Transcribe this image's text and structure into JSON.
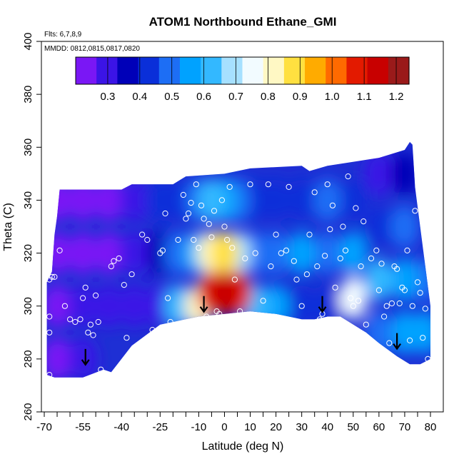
{
  "chart_data": {
    "type": "heatmap",
    "title": "ATOM1 Northbound Ethane_GMI",
    "annotations": {
      "flights": "Flts: 6,7,8,9",
      "dates": "MMDD: 0812,0815,0817,0820"
    },
    "xlabel": "Latitude (deg N)",
    "ylabel": "Theta (C)",
    "xlim": [
      -70,
      80
    ],
    "ylim": [
      260,
      400
    ],
    "x_ticks": [
      -70,
      -55,
      -40,
      -25,
      -10,
      0,
      10,
      20,
      30,
      40,
      50,
      60,
      70,
      80
    ],
    "x_tick_labels": [
      "-70",
      "-55",
      "-40",
      "-25",
      "-10",
      "0",
      "10",
      "20",
      "30",
      "40",
      "50",
      "60",
      "70",
      "80"
    ],
    "x_minor_ticks": [
      -65,
      -60,
      -50,
      -45,
      -35,
      -30,
      -20,
      -15,
      -5,
      5,
      15,
      25,
      35,
      45,
      55,
      65,
      75
    ],
    "y_ticks": [
      260,
      280,
      300,
      320,
      340,
      360,
      380,
      400
    ],
    "y_tick_labels": [
      "260",
      "280",
      "300",
      "320",
      "340",
      "360",
      "380",
      "400"
    ],
    "colorbar": {
      "range": [
        0.2,
        1.24
      ],
      "ticks": [
        0.3,
        0.4,
        0.5,
        0.6,
        0.7,
        0.8,
        0.9,
        1.0,
        1.1,
        1.2
      ],
      "tick_labels": [
        "0.3",
        "0.4",
        "0.5",
        "0.6",
        "0.7",
        "0.8",
        "0.9",
        "1.0",
        "1.1",
        "1.2"
      ],
      "colors": [
        "#7a17f5",
        "#3b14e6",
        "#0000b8",
        "#0a2fd9",
        "#1d6ef5",
        "#00a2ff",
        "#33b8ff",
        "#a6e0ff",
        "#f2fbff",
        "#fff8c4",
        "#ffe040",
        "#ffab00",
        "#ff6a00",
        "#e31a00",
        "#c80000",
        "#9a1a1a"
      ]
    },
    "grid": false,
    "legend": "colorbar-top",
    "top_boundary": [
      [
        -69,
        309
      ],
      [
        -67,
        313
      ],
      [
        -66,
        327
      ],
      [
        -65,
        334
      ],
      [
        -64,
        344
      ],
      [
        -40,
        344
      ],
      [
        -36,
        346
      ],
      [
        -20,
        346
      ],
      [
        -15,
        349
      ],
      [
        0,
        350
      ],
      [
        10,
        352
      ],
      [
        30,
        353
      ],
      [
        33,
        351
      ],
      [
        40,
        353
      ],
      [
        60,
        356
      ],
      [
        70,
        359
      ],
      [
        72,
        362
      ],
      [
        73,
        361
      ],
      [
        74,
        345
      ],
      [
        80,
        300
      ]
    ],
    "bottom_boundary": [
      [
        -69,
        274
      ],
      [
        -66,
        273
      ],
      [
        -60,
        273
      ],
      [
        -55,
        273
      ],
      [
        -47,
        276
      ],
      [
        -44,
        275
      ],
      [
        -36,
        285
      ],
      [
        -25,
        293
      ],
      [
        -10,
        296
      ],
      [
        10,
        298
      ],
      [
        20,
        297
      ],
      [
        30,
        295
      ],
      [
        35,
        295
      ],
      [
        40,
        296
      ],
      [
        45,
        296
      ],
      [
        55,
        290
      ],
      [
        60,
        286
      ],
      [
        67,
        281
      ],
      [
        72,
        278
      ],
      [
        76,
        278
      ],
      [
        80,
        280
      ]
    ],
    "values": [
      {
        "lat": -65,
        "theta": 280,
        "value": 0.25
      },
      {
        "lat": -65,
        "theta": 300,
        "value": 0.26
      },
      {
        "lat": -65,
        "theta": 320,
        "value": 0.24
      },
      {
        "lat": -65,
        "theta": 340,
        "value": 0.22
      },
      {
        "lat": -55,
        "theta": 280,
        "value": 0.27
      },
      {
        "lat": -55,
        "theta": 300,
        "value": 0.27
      },
      {
        "lat": -55,
        "theta": 320,
        "value": 0.25
      },
      {
        "lat": -55,
        "theta": 340,
        "value": 0.23
      },
      {
        "lat": -45,
        "theta": 300,
        "value": 0.28
      },
      {
        "lat": -45,
        "theta": 320,
        "value": 0.26
      },
      {
        "lat": -45,
        "theta": 340,
        "value": 0.24
      },
      {
        "lat": -35,
        "theta": 300,
        "value": 0.29
      },
      {
        "lat": -35,
        "theta": 320,
        "value": 0.3
      },
      {
        "lat": -35,
        "theta": 340,
        "value": 0.32
      },
      {
        "lat": -25,
        "theta": 300,
        "value": 0.32
      },
      {
        "lat": -25,
        "theta": 320,
        "value": 0.34
      },
      {
        "lat": -25,
        "theta": 340,
        "value": 0.4
      },
      {
        "lat": -18,
        "theta": 300,
        "value": 0.6
      },
      {
        "lat": -18,
        "theta": 320,
        "value": 0.48
      },
      {
        "lat": -18,
        "theta": 340,
        "value": 0.42
      },
      {
        "lat": -10,
        "theta": 300,
        "value": 0.85
      },
      {
        "lat": -10,
        "theta": 320,
        "value": 0.6
      },
      {
        "lat": -10,
        "theta": 340,
        "value": 0.5
      },
      {
        "lat": -5,
        "theta": 305,
        "value": 1.1
      },
      {
        "lat": -5,
        "theta": 320,
        "value": 0.85
      },
      {
        "lat": -5,
        "theta": 340,
        "value": 0.6
      },
      {
        "lat": 0,
        "theta": 305,
        "value": 1.15
      },
      {
        "lat": 0,
        "theta": 320,
        "value": 0.9
      },
      {
        "lat": 0,
        "theta": 340,
        "value": 0.55
      },
      {
        "lat": 5,
        "theta": 305,
        "value": 1.05
      },
      {
        "lat": 5,
        "theta": 320,
        "value": 0.7
      },
      {
        "lat": 5,
        "theta": 340,
        "value": 0.5
      },
      {
        "lat": 12,
        "theta": 300,
        "value": 0.65
      },
      {
        "lat": 12,
        "theta": 320,
        "value": 0.52
      },
      {
        "lat": 12,
        "theta": 340,
        "value": 0.45
      },
      {
        "lat": 20,
        "theta": 300,
        "value": 0.55
      },
      {
        "lat": 20,
        "theta": 320,
        "value": 0.5
      },
      {
        "lat": 20,
        "theta": 340,
        "value": 0.42
      },
      {
        "lat": 30,
        "theta": 300,
        "value": 0.45
      },
      {
        "lat": 30,
        "theta": 320,
        "value": 0.55
      },
      {
        "lat": 30,
        "theta": 340,
        "value": 0.45
      },
      {
        "lat": 40,
        "theta": 300,
        "value": 0.45
      },
      {
        "lat": 40,
        "theta": 320,
        "value": 0.5
      },
      {
        "lat": 40,
        "theta": 340,
        "value": 0.48
      },
      {
        "lat": 50,
        "theta": 303,
        "value": 0.75
      },
      {
        "lat": 50,
        "theta": 320,
        "value": 0.55
      },
      {
        "lat": 50,
        "theta": 340,
        "value": 0.45
      },
      {
        "lat": 60,
        "theta": 290,
        "value": 0.5
      },
      {
        "lat": 60,
        "theta": 310,
        "value": 0.6
      },
      {
        "lat": 60,
        "theta": 330,
        "value": 0.45
      },
      {
        "lat": 60,
        "theta": 350,
        "value": 0.3
      },
      {
        "lat": 70,
        "theta": 290,
        "value": 0.55
      },
      {
        "lat": 70,
        "theta": 310,
        "value": 0.55
      },
      {
        "lat": 70,
        "theta": 330,
        "value": 0.5
      },
      {
        "lat": 70,
        "theta": 350,
        "value": 0.35
      },
      {
        "lat": 78,
        "theta": 290,
        "value": 0.55
      },
      {
        "lat": 78,
        "theta": 310,
        "value": 0.5
      }
    ],
    "observations": [
      [
        -68,
        274
      ],
      [
        -68,
        290
      ],
      [
        -68,
        296
      ],
      [
        -68,
        310
      ],
      [
        -67,
        311
      ],
      [
        -66,
        311
      ],
      [
        -64,
        321
      ],
      [
        -62,
        300
      ],
      [
        -60,
        295
      ],
      [
        -58,
        294
      ],
      [
        -56,
        295
      ],
      [
        -55,
        303
      ],
      [
        -54,
        307
      ],
      [
        -53,
        290
      ],
      [
        -52,
        293
      ],
      [
        -51,
        289
      ],
      [
        -50,
        304
      ],
      [
        -49,
        294
      ],
      [
        -48,
        276
      ],
      [
        -44,
        315
      ],
      [
        -43,
        317
      ],
      [
        -41,
        318
      ],
      [
        -39,
        308
      ],
      [
        -38,
        288
      ],
      [
        -36,
        312
      ],
      [
        -32,
        327
      ],
      [
        -30,
        325
      ],
      [
        -28,
        291
      ],
      [
        -25,
        320
      ],
      [
        -24,
        321
      ],
      [
        -23,
        335
      ],
      [
        -22,
        303
      ],
      [
        -21,
        294
      ],
      [
        -18,
        325
      ],
      [
        -16,
        342
      ],
      [
        -15,
        333
      ],
      [
        -14,
        335
      ],
      [
        -13,
        339
      ],
      [
        -12,
        325
      ],
      [
        -11,
        346
      ],
      [
        -10,
        322
      ],
      [
        -9,
        338
      ],
      [
        -8,
        333
      ],
      [
        -7,
        296
      ],
      [
        -6,
        331
      ],
      [
        -5,
        326
      ],
      [
        -4,
        336
      ],
      [
        -3,
        298
      ],
      [
        -2,
        297
      ],
      [
        -1,
        340
      ],
      [
        0,
        330
      ],
      [
        1,
        325
      ],
      [
        2,
        345
      ],
      [
        3,
        322
      ],
      [
        4,
        310
      ],
      [
        6,
        298
      ],
      [
        8,
        318
      ],
      [
        10,
        346
      ],
      [
        12,
        320
      ],
      [
        15,
        302
      ],
      [
        17,
        346
      ],
      [
        18,
        315
      ],
      [
        20,
        327
      ],
      [
        22,
        320
      ],
      [
        24,
        321
      ],
      [
        25,
        345
      ],
      [
        27,
        317
      ],
      [
        28,
        310
      ],
      [
        30,
        300
      ],
      [
        32,
        312
      ],
      [
        33,
        327
      ],
      [
        35,
        343
      ],
      [
        36,
        315
      ],
      [
        37,
        295
      ],
      [
        38,
        297
      ],
      [
        39,
        319
      ],
      [
        40,
        346
      ],
      [
        41,
        329
      ],
      [
        42,
        338
      ],
      [
        43,
        307
      ],
      [
        45,
        318
      ],
      [
        46,
        330
      ],
      [
        47,
        321
      ],
      [
        48,
        349
      ],
      [
        49,
        303
      ],
      [
        50,
        300
      ],
      [
        51,
        337
      ],
      [
        52,
        302
      ],
      [
        53,
        315
      ],
      [
        54,
        332
      ],
      [
        55,
        293
      ],
      [
        57,
        318
      ],
      [
        59,
        321
      ],
      [
        60,
        306
      ],
      [
        61,
        316
      ],
      [
        62,
        296
      ],
      [
        63,
        300
      ],
      [
        64,
        286
      ],
      [
        65,
        301
      ],
      [
        66,
        315
      ],
      [
        67,
        314
      ],
      [
        68,
        301
      ],
      [
        69,
        307
      ],
      [
        70,
        306
      ],
      [
        71,
        321
      ],
      [
        72,
        287
      ],
      [
        73,
        300
      ],
      [
        74,
        336
      ],
      [
        75,
        309
      ],
      [
        76,
        305
      ],
      [
        77,
        288
      ],
      [
        78,
        299
      ],
      [
        79,
        280
      ]
    ],
    "flight_markers": [
      {
        "lat": -54,
        "theta": 280
      },
      {
        "lat": -8,
        "theta": 300
      },
      {
        "lat": 38,
        "theta": 300
      },
      {
        "lat": 67,
        "theta": 286
      }
    ]
  }
}
